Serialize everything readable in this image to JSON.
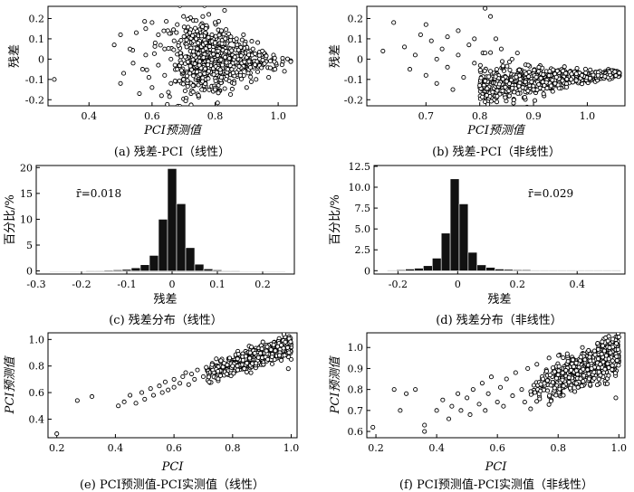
{
  "chart_data": [
    {
      "id": "a",
      "type": "scatter",
      "caption": "(a) 残差-PCI（线性）",
      "xlabel": "PCI预测值",
      "ylabel": "残差",
      "xlim": [
        0.27,
        1.06
      ],
      "ylim": [
        -0.23,
        0.26
      ],
      "xticks": [
        0.4,
        0.6,
        0.8,
        1.0
      ],
      "xtick_labels": [
        "0.4",
        "0.6",
        "0.8",
        "1.0"
      ],
      "yticks": [
        -0.2,
        -0.1,
        0.0,
        0.1,
        0.2
      ],
      "ytick_labels": [
        "-0.2",
        "-0.1",
        "0",
        "0.1",
        "0.2"
      ],
      "points": [
        [
          0.29,
          -0.1
        ],
        [
          0.48,
          0.07
        ],
        [
          0.5,
          0.12
        ],
        [
          0.51,
          -0.07
        ],
        [
          0.5,
          -0.12
        ],
        [
          0.53,
          0.05
        ],
        [
          0.54,
          -0.02
        ],
        [
          0.55,
          0.13
        ],
        [
          0.56,
          -0.17
        ],
        [
          0.57,
          -0.05
        ],
        [
          0.58,
          0.15
        ],
        [
          0.58,
          0.02
        ],
        [
          0.59,
          -0.09
        ],
        [
          0.6,
          0.18
        ],
        [
          0.6,
          -0.14
        ],
        [
          0.61,
          0.08
        ],
        [
          0.62,
          -0.03
        ],
        [
          0.62,
          0.12
        ],
        [
          0.63,
          -0.18
        ],
        [
          0.64,
          0.05
        ],
        [
          0.64,
          -0.08
        ],
        [
          0.65,
          0.14
        ],
        [
          0.66,
          0.0
        ],
        [
          0.66,
          -0.12
        ],
        [
          0.67,
          0.09
        ],
        [
          0.68,
          -0.05
        ],
        [
          0.68,
          0.17
        ],
        [
          0.69,
          0.03
        ],
        [
          0.7,
          -0.1
        ],
        [
          0.7,
          0.21
        ],
        [
          0.71,
          0.06
        ],
        [
          0.72,
          -0.07
        ],
        [
          0.72,
          0.13
        ],
        [
          0.73,
          -0.13
        ],
        [
          0.74,
          0.1
        ],
        [
          0.74,
          0.19
        ],
        [
          0.75,
          -0.03
        ],
        [
          0.76,
          0.16
        ],
        [
          0.76,
          -0.11
        ],
        [
          0.77,
          0.08
        ],
        [
          0.78,
          0.22
        ],
        [
          0.78,
          -0.06
        ],
        [
          0.79,
          0.12
        ],
        [
          0.8,
          -0.15
        ],
        [
          0.8,
          0.18
        ],
        [
          0.81,
          0.04
        ],
        [
          0.82,
          -0.09
        ],
        [
          0.82,
          0.14
        ],
        [
          0.83,
          0.24
        ],
        [
          0.84,
          -0.05
        ],
        [
          0.85,
          0.11
        ],
        [
          0.86,
          -0.12
        ],
        [
          0.87,
          0.07
        ],
        [
          0.88,
          -0.08
        ],
        [
          0.89,
          0.12
        ],
        [
          0.9,
          -0.14
        ],
        [
          0.92,
          0.05
        ],
        [
          0.93,
          -0.1
        ],
        [
          0.95,
          0.04
        ],
        [
          0.97,
          -0.09
        ],
        [
          0.99,
          -0.05
        ],
        [
          1.02,
          -0.06
        ]
      ],
      "annotation": ""
    },
    {
      "id": "b",
      "type": "scatter",
      "caption": "(b) 残差-PCI（非线性）",
      "xlabel": "PCI预测值",
      "ylabel": "残差",
      "xlim": [
        0.59,
        1.07
      ],
      "ylim": [
        -0.23,
        0.26
      ],
      "xticks": [
        0.7,
        0.8,
        0.9,
        1.0
      ],
      "xtick_labels": [
        "0.7",
        "0.8",
        "0.9",
        "1.0"
      ],
      "yticks": [
        -0.2,
        -0.1,
        0.0,
        0.1,
        0.2
      ],
      "ytick_labels": [
        "-0.2",
        "-0.1",
        "0",
        "0.1",
        "0.2"
      ],
      "points": [
        [
          0.62,
          0.04
        ],
        [
          0.64,
          0.18
        ],
        [
          0.66,
          0.06
        ],
        [
          0.67,
          -0.05
        ],
        [
          0.68,
          0.02
        ],
        [
          0.69,
          0.12
        ],
        [
          0.7,
          0.17
        ],
        [
          0.7,
          -0.08
        ],
        [
          0.71,
          0.09
        ],
        [
          0.72,
          0.0
        ],
        [
          0.72,
          -0.12
        ],
        [
          0.73,
          0.05
        ],
        [
          0.74,
          -0.04
        ],
        [
          0.74,
          0.11
        ],
        [
          0.75,
          -0.15
        ],
        [
          0.76,
          0.14
        ],
        [
          0.76,
          0.02
        ],
        [
          0.77,
          -0.09
        ],
        [
          0.78,
          0.07
        ],
        [
          0.79,
          -0.02
        ],
        [
          0.79,
          0.1
        ],
        [
          0.8,
          -0.13
        ],
        [
          0.81,
          0.25
        ],
        [
          0.81,
          0.03
        ],
        [
          0.82,
          0.21
        ],
        [
          0.82,
          -0.06
        ],
        [
          0.83,
          0.1
        ],
        [
          0.84,
          0.05
        ],
        [
          0.85,
          -0.11
        ],
        [
          0.86,
          0.0
        ],
        [
          0.87,
          0.03
        ],
        [
          0.88,
          -0.14
        ],
        [
          0.89,
          -0.03
        ],
        [
          0.9,
          -0.15
        ],
        [
          0.91,
          -0.04
        ],
        [
          0.92,
          -0.13
        ],
        [
          0.93,
          -0.06
        ],
        [
          0.94,
          -0.12
        ],
        [
          0.96,
          -0.07
        ],
        [
          0.97,
          -0.1
        ],
        [
          0.99,
          -0.08
        ],
        [
          1.02,
          -0.08
        ]
      ],
      "annotation": ""
    },
    {
      "id": "c",
      "type": "bar",
      "caption": "(c) 残差分布（线性）",
      "xlabel": "残差",
      "ylabel": "百分比/%",
      "xlim": [
        -0.3,
        0.27
      ],
      "ylim": [
        -0.6,
        20.4
      ],
      "xticks": [
        -0.3,
        -0.2,
        -0.1,
        0.0,
        0.1,
        0.2
      ],
      "xtick_labels": [
        "-0.3",
        "-0.2",
        "-0.1",
        "0",
        "0.1",
        "0.2"
      ],
      "yticks": [
        0,
        5,
        10,
        15,
        20
      ],
      "ytick_labels": [
        "0",
        "5",
        "10",
        "15",
        "20"
      ],
      "bar_width": 0.02,
      "bins": [
        -0.26,
        -0.24,
        -0.22,
        -0.2,
        -0.18,
        -0.16,
        -0.14,
        -0.12,
        -0.1,
        -0.08,
        -0.06,
        -0.04,
        -0.02,
        0.0,
        0.02,
        0.04,
        0.06,
        0.08,
        0.1,
        0.12,
        0.14,
        0.16,
        0.18,
        0.2,
        0.22,
        0.24
      ],
      "values": [
        0.05,
        0.05,
        0.05,
        0.05,
        0.1,
        0.1,
        0.15,
        0.2,
        0.3,
        0.6,
        1.2,
        3.0,
        10.0,
        19.8,
        13.0,
        4.5,
        1.3,
        0.4,
        0.2,
        0.1,
        0.1,
        0.05,
        0.05,
        0.05,
        0.05,
        0.05
      ],
      "annotation": "r̄=0.018"
    },
    {
      "id": "d",
      "type": "bar",
      "caption": "(d) 残差分布（非线性）",
      "xlabel": "残差",
      "ylabel": "百分比/%",
      "xlim": [
        -0.28,
        0.56
      ],
      "ylim": [
        -0.4,
        12.6
      ],
      "xticks": [
        -0.2,
        0.0,
        0.2,
        0.4
      ],
      "xtick_labels": [
        "-0.2",
        "0",
        "0.2",
        "0.4"
      ],
      "yticks": [
        0,
        2.5,
        5.0,
        7.5,
        10.0,
        12.5
      ],
      "ytick_labels": [
        "0",
        "2.5",
        "5.0",
        "7.5",
        "10.0",
        "12.5"
      ],
      "bar_width": 0.03,
      "bins": [
        -0.22,
        -0.19,
        -0.16,
        -0.13,
        -0.1,
        -0.07,
        -0.04,
        -0.01,
        0.02,
        0.05,
        0.08,
        0.11,
        0.14,
        0.17,
        0.2,
        0.23,
        0.26,
        0.29,
        0.32,
        0.35,
        0.38,
        0.41,
        0.44,
        0.47,
        0.5,
        0.53
      ],
      "values": [
        0.05,
        0.1,
        0.2,
        0.3,
        0.6,
        1.5,
        4.5,
        11.0,
        8.0,
        2.2,
        0.7,
        0.4,
        0.2,
        0.15,
        0.1,
        0.1,
        0.05,
        0.05,
        0.05,
        0.05,
        0.05,
        0.05,
        0.05,
        0.05,
        0.05,
        0.05
      ],
      "annotation": "r̄=0.029"
    },
    {
      "id": "e",
      "type": "scatter",
      "caption": "(e) PCI预测值-PCI实测值（线性）",
      "xlabel": "PCI",
      "ylabel": "PCI预测值",
      "xlim": [
        0.17,
        1.02
      ],
      "ylim": [
        0.26,
        1.05
      ],
      "xticks": [
        0.2,
        0.4,
        0.6,
        0.8,
        1.0
      ],
      "xtick_labels": [
        "0.2",
        "0.4",
        "0.6",
        "0.8",
        "1.0"
      ],
      "yticks": [
        0.4,
        0.6,
        0.8,
        1.0
      ],
      "ytick_labels": [
        "0.4",
        "0.6",
        "0.8",
        "1.0"
      ],
      "points": [
        [
          0.2,
          0.29
        ],
        [
          0.27,
          0.54
        ],
        [
          0.32,
          0.57
        ],
        [
          0.41,
          0.5
        ],
        [
          0.43,
          0.53
        ],
        [
          0.45,
          0.58
        ],
        [
          0.47,
          0.52
        ],
        [
          0.49,
          0.6
        ],
        [
          0.5,
          0.55
        ],
        [
          0.52,
          0.63
        ],
        [
          0.53,
          0.58
        ],
        [
          0.55,
          0.65
        ],
        [
          0.56,
          0.6
        ],
        [
          0.57,
          0.68
        ],
        [
          0.58,
          0.62
        ],
        [
          0.6,
          0.7
        ],
        [
          0.6,
          0.64
        ],
        [
          0.62,
          0.67
        ],
        [
          0.63,
          0.72
        ],
        [
          0.64,
          0.75
        ],
        [
          0.65,
          0.66
        ],
        [
          0.66,
          0.74
        ],
        [
          0.67,
          0.7
        ],
        [
          0.68,
          0.77
        ],
        [
          0.7,
          0.72
        ],
        [
          0.71,
          0.79
        ],
        [
          0.72,
          0.68
        ],
        [
          0.73,
          0.81
        ],
        [
          0.75,
          0.76
        ],
        [
          0.76,
          0.84
        ],
        [
          0.78,
          0.74
        ],
        [
          0.79,
          0.86
        ],
        [
          0.8,
          0.8
        ],
        [
          0.82,
          0.89
        ],
        [
          0.84,
          0.78
        ],
        [
          0.86,
          0.9
        ],
        [
          0.88,
          0.82
        ],
        [
          0.9,
          0.93
        ],
        [
          0.92,
          0.85
        ],
        [
          0.94,
          0.96
        ],
        [
          0.96,
          0.88
        ],
        [
          0.98,
          0.98
        ],
        [
          0.99,
          0.78
        ],
        [
          1.0,
          0.85
        ]
      ],
      "annotation": ""
    },
    {
      "id": "f",
      "type": "scatter",
      "caption": "(f) PCI预测值-PCI实测值（非线性）",
      "xlabel": "PCI",
      "ylabel": "PCI预测值",
      "xlim": [
        0.17,
        1.02
      ],
      "ylim": [
        0.57,
        1.07
      ],
      "xticks": [
        0.2,
        0.4,
        0.6,
        0.8,
        1.0
      ],
      "xtick_labels": [
        "0.2",
        "0.4",
        "0.6",
        "0.8",
        "1.0"
      ],
      "yticks": [
        0.6,
        0.7,
        0.8,
        0.9,
        1.0
      ],
      "ytick_labels": [
        "0.6",
        "0.7",
        "0.8",
        "0.9",
        "1.0"
      ],
      "points": [
        [
          0.19,
          0.62
        ],
        [
          0.26,
          0.8
        ],
        [
          0.28,
          0.7
        ],
        [
          0.3,
          0.78
        ],
        [
          0.33,
          0.8
        ],
        [
          0.36,
          0.6
        ],
        [
          0.36,
          0.63
        ],
        [
          0.4,
          0.7
        ],
        [
          0.42,
          0.75
        ],
        [
          0.44,
          0.66
        ],
        [
          0.45,
          0.72
        ],
        [
          0.47,
          0.78
        ],
        [
          0.48,
          0.7
        ],
        [
          0.5,
          0.76
        ],
        [
          0.51,
          0.68
        ],
        [
          0.52,
          0.8
        ],
        [
          0.54,
          0.73
        ],
        [
          0.55,
          0.83
        ],
        [
          0.56,
          0.7
        ],
        [
          0.57,
          0.78
        ],
        [
          0.58,
          0.86
        ],
        [
          0.6,
          0.74
        ],
        [
          0.61,
          0.81
        ],
        [
          0.62,
          0.72
        ],
        [
          0.63,
          0.85
        ],
        [
          0.65,
          0.77
        ],
        [
          0.66,
          0.88
        ],
        [
          0.68,
          0.8
        ],
        [
          0.69,
          0.74
        ],
        [
          0.7,
          0.9
        ],
        [
          0.72,
          0.82
        ],
        [
          0.73,
          0.92
        ],
        [
          0.75,
          0.85
        ],
        [
          0.77,
          0.95
        ],
        [
          0.8,
          0.87
        ],
        [
          0.83,
          0.97
        ],
        [
          0.86,
          0.89
        ],
        [
          0.88,
          1.0
        ],
        [
          0.91,
          0.9
        ],
        [
          0.93,
          1.02
        ],
        [
          0.95,
          0.88
        ],
        [
          0.98,
          1.04
        ],
        [
          0.99,
          0.76
        ],
        [
          1.0,
          1.05
        ]
      ],
      "annotation": ""
    }
  ]
}
